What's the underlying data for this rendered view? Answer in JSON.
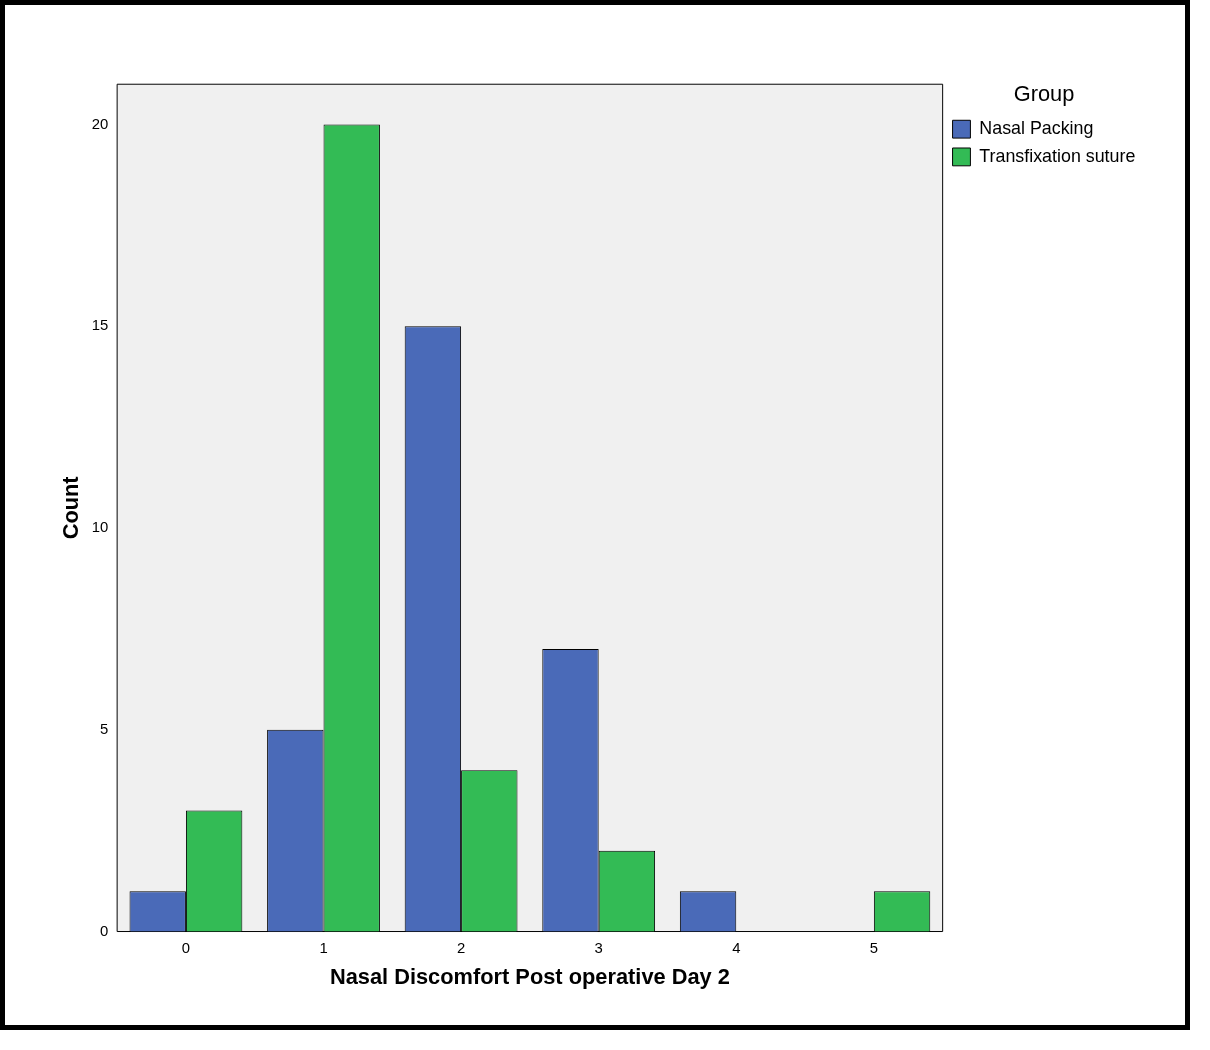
{
  "chart_data": {
    "type": "bar",
    "xlabel": "Nasal Discomfort Post operative Day 2",
    "ylabel": "Count",
    "legend_title": "Group",
    "legend": "top right",
    "grid": false,
    "categories": [
      "0",
      "1",
      "2",
      "3",
      "4",
      "5"
    ],
    "series": [
      {
        "name": "Nasal Packing",
        "color": "#4a6ab8",
        "values": [
          1,
          5,
          15,
          7,
          1,
          0
        ]
      },
      {
        "name": "Transfixation suture",
        "color": "#33bb55",
        "values": [
          3,
          20,
          4,
          2,
          0,
          1
        ]
      }
    ],
    "ylim": [
      0,
      21
    ],
    "yticks": [
      0,
      5,
      10,
      15,
      20
    ]
  }
}
